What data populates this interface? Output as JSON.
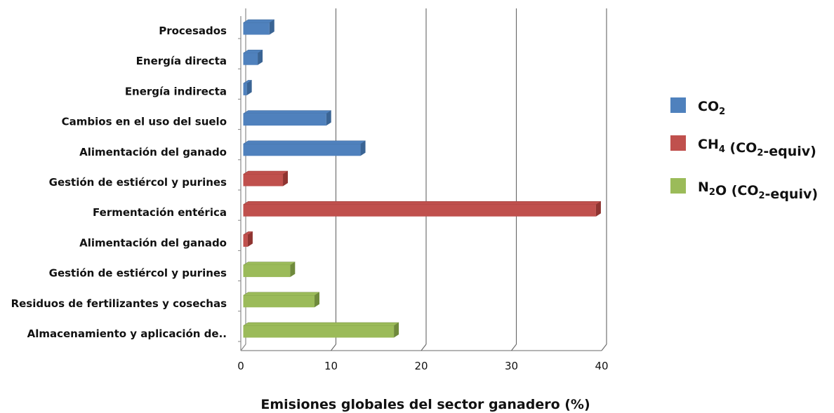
{
  "chart_data": {
    "type": "bar",
    "orientation": "horizontal",
    "style": "3d",
    "xlabel": "Emisiones globales del sector ganadero (%)",
    "ylabel": "",
    "title": "",
    "xlim": [
      0,
      40
    ],
    "xticks": [
      0,
      10,
      20,
      30,
      40
    ],
    "grid": "vertical",
    "legend_position": "right",
    "series": [
      {
        "name": "CO2",
        "color": "#4f81bd",
        "side": "#3a6494",
        "categories": [
          "Procesados",
          "Energía directa",
          "Energía indirecta",
          "Cambios en el uso del suelo",
          "Alimentación del ganado"
        ],
        "values": [
          2.9,
          1.6,
          0.4,
          9.2,
          13.0
        ]
      },
      {
        "name": "CH4 (CO2-equiv)",
        "color": "#c0504d",
        "side": "#8f3431",
        "categories": [
          "Gestión de estiércol y purines",
          "Fermentación entérica",
          "Alimentación del ganado"
        ],
        "values": [
          4.4,
          39.1,
          0.5
        ]
      },
      {
        "name": "N2O (CO2-equiv)",
        "color": "#9bbb59",
        "side": "#6f8a3c",
        "categories": [
          "Gestión de estiércol y purines",
          "Residuos de fertilizantes y cosechas",
          "Almacenamiento y aplicación de.."
        ],
        "values": [
          5.2,
          7.9,
          16.7
        ]
      }
    ]
  },
  "legend": [
    {
      "base": "CO",
      "sub": "2",
      "rest": "",
      "sub2": "",
      "tail": ""
    },
    {
      "base": "CH",
      "sub": "4",
      "rest": " (CO",
      "sub2": "2",
      "tail": "-equiv)"
    },
    {
      "base": "N",
      "sub": "2",
      "rest": "O (CO",
      "sub2": "2",
      "tail": "-equiv)"
    }
  ]
}
